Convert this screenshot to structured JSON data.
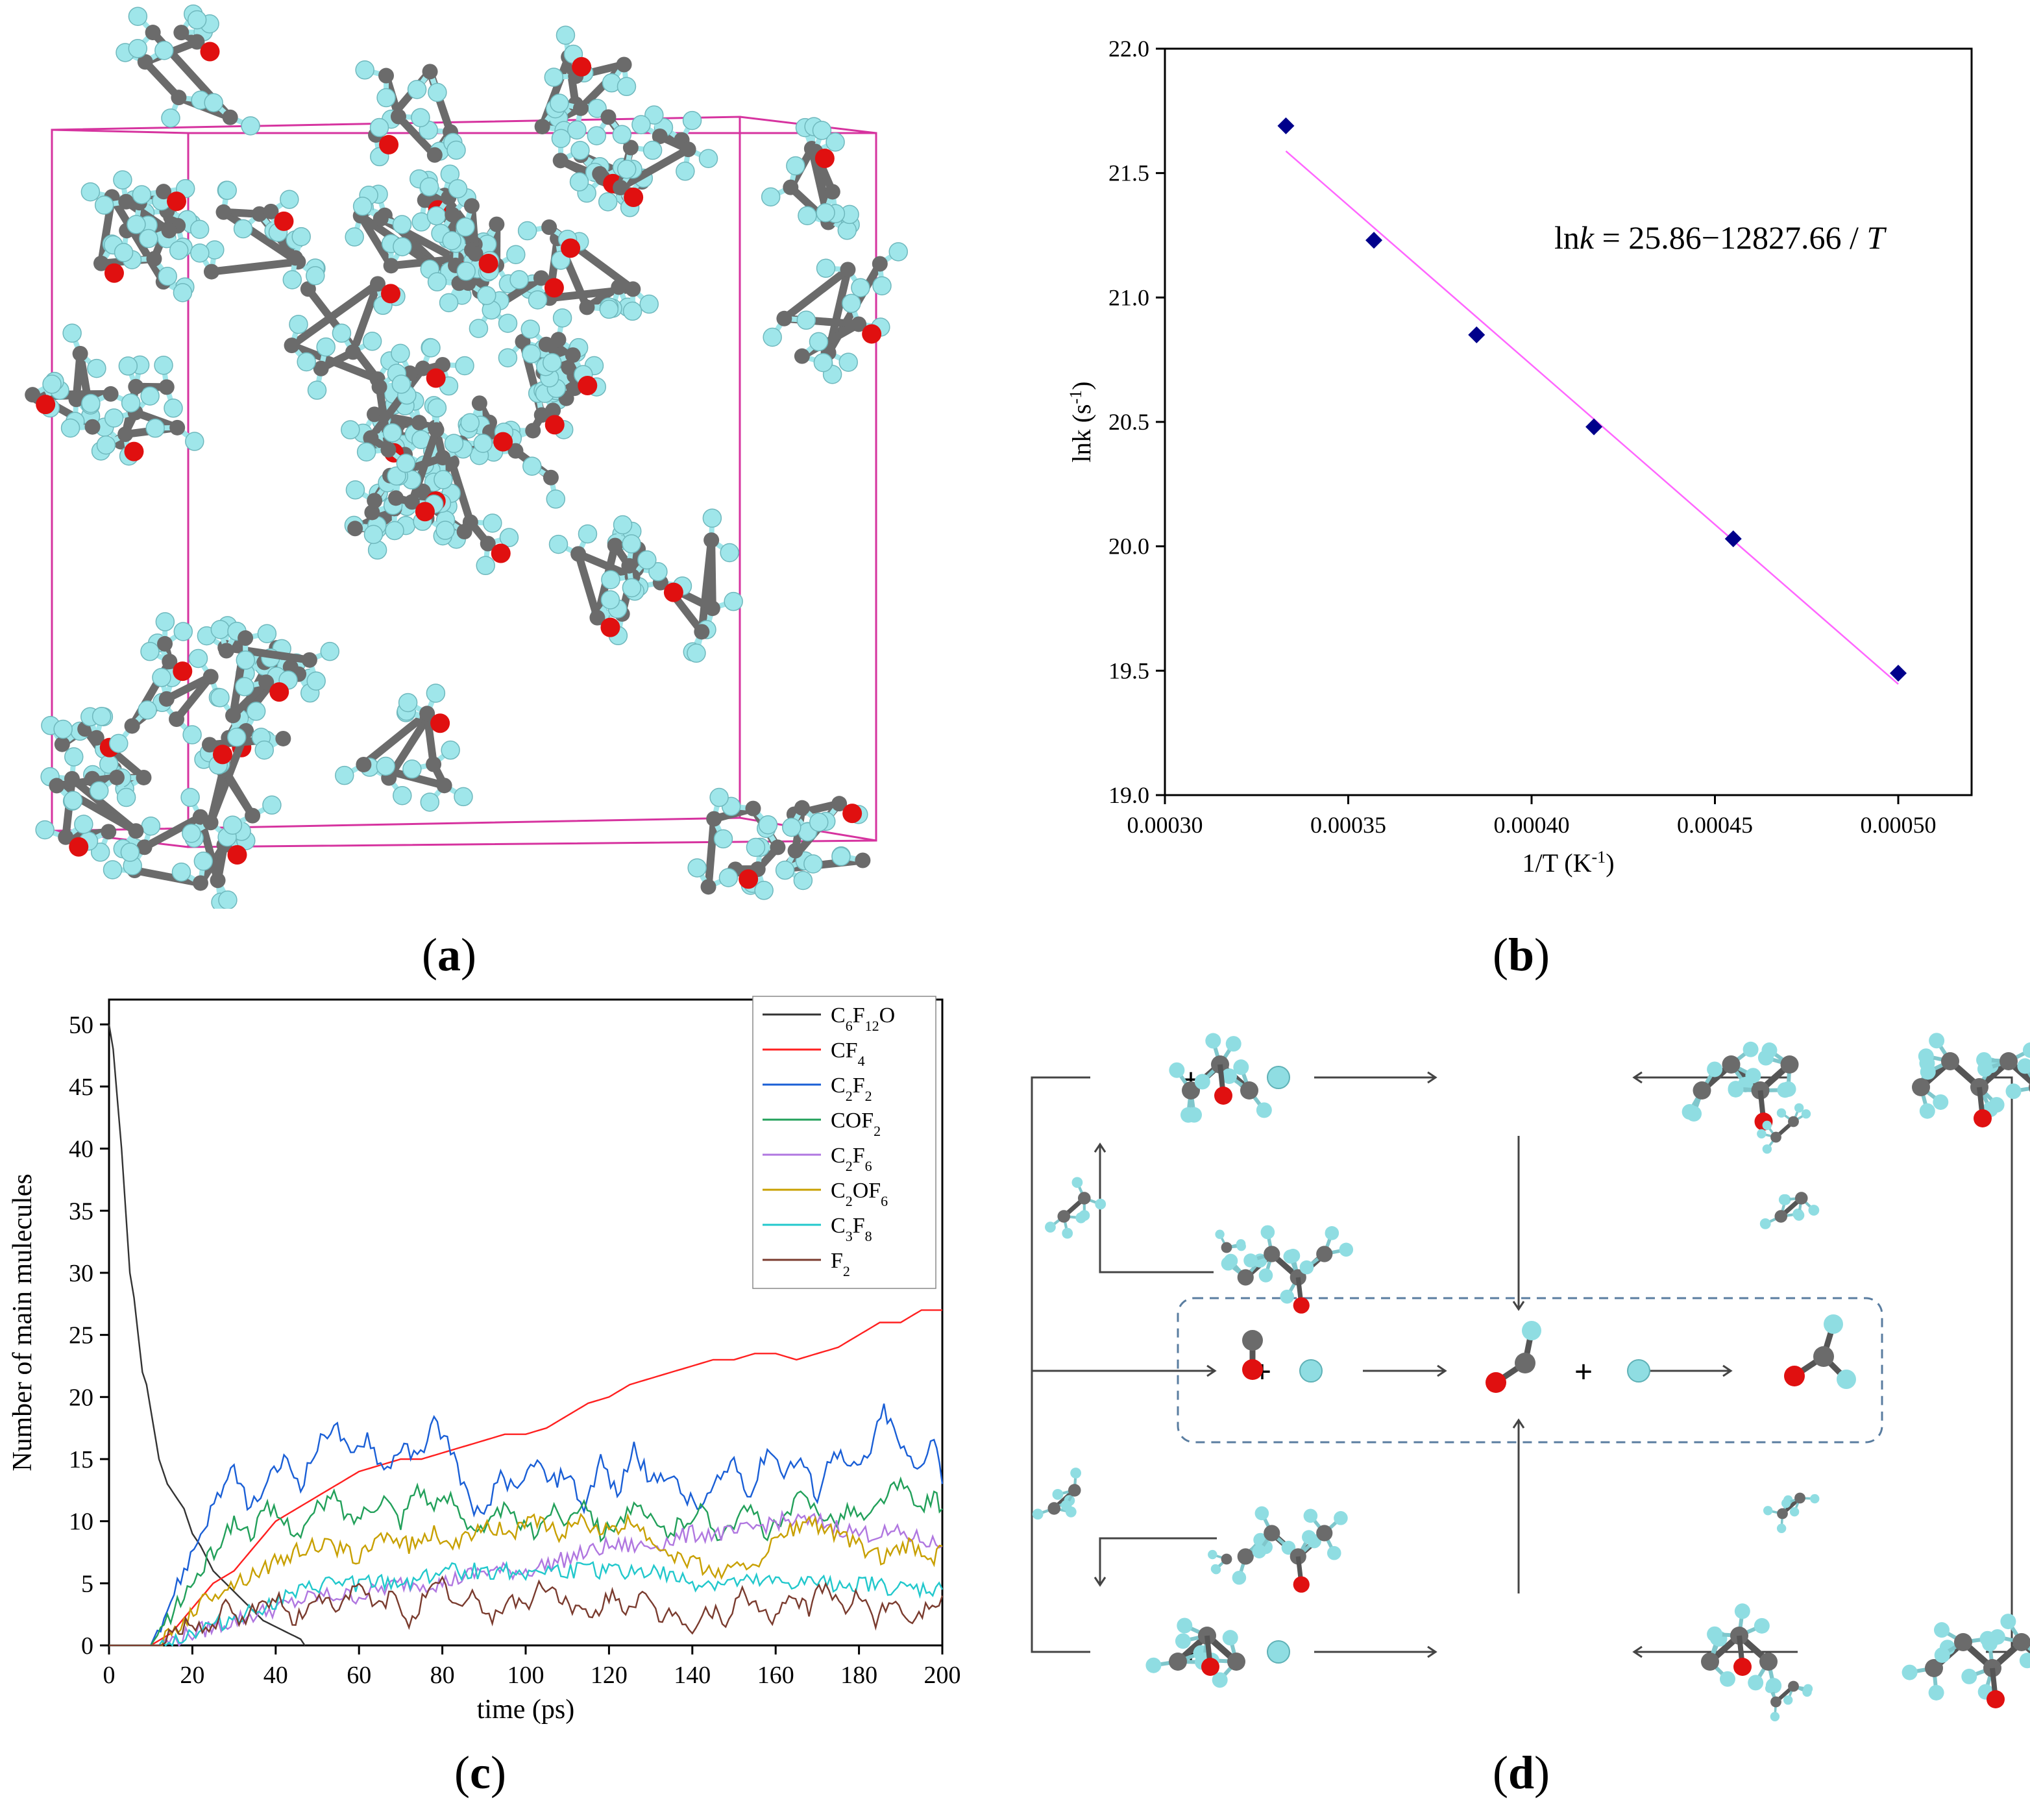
{
  "panel_labels": {
    "a": "a",
    "b": "b",
    "c": "c",
    "d": "d"
  },
  "colors": {
    "box": "#d6339f",
    "carbon": "#6b6b6b",
    "oxygen": "#e01010",
    "fluorine": "#9fe6ea",
    "marker": "#00008b",
    "fit": "#ff66ff",
    "dash": "#5a7da0",
    "series": [
      "#333333",
      "#ff2020",
      "#1a5fd6",
      "#22a05a",
      "#b077e0",
      "#c8a000",
      "#22c8cc",
      "#7a3b2e"
    ]
  },
  "chart_data": [
    {
      "type": "scatter",
      "id": "b",
      "xlabel": "1/T (K",
      "xlabel_sup": "-1",
      "xlabel_end": ")",
      "ylabel": "lnk (s",
      "ylabel_sup": "-1",
      "ylabel_end": ")",
      "xlim": [
        0.0003,
        0.00052
      ],
      "ylim": [
        19.0,
        22.0
      ],
      "xticks": [
        "0.00030",
        "0.00035",
        "0.00040",
        "0.00045",
        "0.00050"
      ],
      "xtick_values": [
        0.0003,
        0.00035,
        0.0004,
        0.00045,
        0.0005
      ],
      "yticks": [
        "19.0",
        "19.5",
        "20.0",
        "20.5",
        "21.0",
        "21.5",
        "22.0"
      ],
      "ytick_values": [
        19.0,
        19.5,
        20.0,
        20.5,
        21.0,
        21.5,
        22.0
      ],
      "points": [
        {
          "x": 0.000333,
          "y": 21.69
        },
        {
          "x": 0.000357,
          "y": 21.23
        },
        {
          "x": 0.000385,
          "y": 20.85
        },
        {
          "x": 0.000417,
          "y": 20.48
        },
        {
          "x": 0.000455,
          "y": 20.03
        },
        {
          "x": 0.0005,
          "y": 19.49
        }
      ],
      "fit": {
        "intercept": 25.86,
        "slope": -12827.66,
        "x_range": [
          0.000333,
          0.0005
        ]
      },
      "equation": {
        "lhs": "ln",
        "k": "k",
        "rhs": " = 25.86−12827.66 / ",
        "T": "T"
      }
    },
    {
      "type": "line",
      "id": "c",
      "xlabel": "time (ps)",
      "ylabel": "Number of main mulecules",
      "xlim": [
        0,
        200
      ],
      "ylim": [
        0,
        52
      ],
      "xticks": [
        "0",
        "20",
        "40",
        "60",
        "80",
        "100",
        "120",
        "140",
        "160",
        "180",
        "200"
      ],
      "xtick_values": [
        0,
        20,
        40,
        60,
        80,
        100,
        120,
        140,
        160,
        180,
        200
      ],
      "yticks": [
        "0",
        "5",
        "10",
        "15",
        "20",
        "25",
        "30",
        "35",
        "40",
        "45",
        "50"
      ],
      "ytick_values": [
        0,
        5,
        10,
        15,
        20,
        25,
        30,
        35,
        40,
        45,
        50
      ],
      "series": [
        {
          "name": "C6F12O",
          "label": [
            [
              "C",
              ""
            ],
            [
              "6",
              "sub"
            ],
            [
              "F",
              ""
            ],
            [
              "12",
              "sub"
            ],
            [
              "O",
              ""
            ]
          ],
          "t": [
            0,
            1,
            2,
            3,
            4,
            5,
            6,
            7,
            8,
            9,
            10,
            12,
            14,
            16,
            18,
            20,
            22,
            25,
            28,
            31,
            34,
            37,
            40,
            43,
            46,
            47
          ],
          "v": [
            50,
            48,
            44,
            40,
            35,
            30,
            28,
            25,
            22,
            21,
            19,
            15,
            13,
            12,
            11,
            9,
            8,
            6,
            5,
            4,
            3,
            2,
            1.5,
            1,
            0.5,
            0
          ]
        },
        {
          "name": "CF4",
          "label": [
            [
              "CF",
              ""
            ],
            [
              "4",
              "sub"
            ]
          ],
          "t": [
            0,
            10,
            15,
            20,
            25,
            30,
            35,
            40,
            45,
            50,
            55,
            60,
            65,
            70,
            75,
            80,
            85,
            90,
            95,
            100,
            105,
            110,
            115,
            120,
            125,
            130,
            135,
            140,
            145,
            150,
            155,
            160,
            165,
            170,
            175,
            180,
            185,
            190,
            195,
            200
          ],
          "v": [
            0,
            0,
            1,
            3,
            5,
            6,
            8,
            10,
            11,
            12,
            13,
            14,
            14.5,
            15,
            15,
            15.5,
            16,
            16.5,
            17,
            17,
            17.5,
            18.5,
            19.5,
            20,
            21,
            21.5,
            22,
            22.5,
            23,
            23,
            23.5,
            23.5,
            23,
            23.5,
            24,
            25,
            26,
            26,
            27,
            27
          ]
        },
        {
          "name": "C2F2",
          "label": [
            [
              "C",
              ""
            ],
            [
              "2",
              "sub"
            ],
            [
              "F",
              ""
            ],
            [
              "2",
              "sub"
            ]
          ],
          "t": [
            0,
            10,
            14,
            18,
            22,
            26,
            30,
            34,
            38,
            42,
            46,
            50,
            54,
            58,
            62,
            66,
            70,
            74,
            78,
            82,
            86,
            90,
            94,
            98,
            102,
            106,
            110,
            114,
            118,
            122,
            126,
            130,
            134,
            138,
            142,
            146,
            150,
            154,
            158,
            162,
            166,
            170,
            174,
            178,
            182,
            186,
            190,
            194,
            198,
            200
          ],
          "v": [
            0,
            0,
            3,
            6,
            9,
            12,
            14,
            11,
            13,
            15,
            13,
            16,
            18,
            15,
            17,
            14,
            16,
            15,
            18,
            16,
            12,
            10,
            14,
            12,
            15,
            13,
            14,
            11,
            15,
            12,
            16,
            13,
            14,
            12,
            11,
            13,
            15,
            12,
            16,
            14,
            15,
            12,
            16,
            14,
            15,
            19,
            16,
            14,
            17,
            13
          ]
        },
        {
          "name": "COF2",
          "label": [
            [
              "COF",
              ""
            ],
            [
              "2",
              "sub"
            ]
          ],
          "t": [
            0,
            10,
            14,
            18,
            22,
            26,
            30,
            34,
            38,
            42,
            46,
            50,
            54,
            58,
            62,
            66,
            70,
            74,
            78,
            82,
            86,
            90,
            94,
            98,
            102,
            106,
            110,
            114,
            118,
            122,
            126,
            130,
            134,
            138,
            142,
            146,
            150,
            154,
            158,
            162,
            166,
            170,
            174,
            178,
            182,
            186,
            190,
            194,
            198,
            200
          ],
          "v": [
            0,
            0,
            2,
            4,
            6,
            8,
            10,
            9,
            11,
            10,
            9,
            11,
            12,
            10,
            11,
            12,
            10,
            13,
            11,
            12,
            10,
            9,
            11,
            10,
            9,
            11,
            10,
            12,
            9,
            10,
            11,
            10,
            9,
            10,
            11,
            9,
            10,
            11,
            9,
            10,
            12,
            11,
            10,
            11,
            10,
            12,
            13,
            11,
            12,
            11
          ]
        },
        {
          "name": "C2F6",
          "label": [
            [
              "C",
              ""
            ],
            [
              "2",
              "sub"
            ],
            [
              "F",
              ""
            ],
            [
              "6",
              "sub"
            ]
          ],
          "t": [
            0,
            12,
            20,
            30,
            40,
            50,
            60,
            70,
            80,
            90,
            100,
            110,
            120,
            130,
            140,
            150,
            160,
            170,
            180,
            190,
            200
          ],
          "v": [
            0,
            0,
            1,
            2,
            3,
            4,
            4,
            5,
            5,
            6,
            6,
            7,
            8,
            8,
            9,
            9,
            10,
            10,
            9,
            9,
            8
          ]
        },
        {
          "name": "C2OF6",
          "label": [
            [
              "C",
              ""
            ],
            [
              "2",
              "sub"
            ],
            [
              "OF",
              ""
            ],
            [
              "6",
              "sub"
            ]
          ],
          "t": [
            0,
            12,
            18,
            24,
            30,
            36,
            42,
            48,
            54,
            60,
            66,
            72,
            78,
            84,
            90,
            96,
            102,
            108,
            114,
            120,
            126,
            132,
            138,
            144,
            150,
            156,
            162,
            168,
            174,
            180,
            186,
            192,
            198,
            200
          ],
          "v": [
            0,
            0,
            2,
            4,
            5,
            6,
            7,
            8,
            8,
            7,
            9,
            8,
            9,
            8,
            10,
            9,
            10,
            9,
            10,
            9,
            10,
            8,
            7,
            6,
            6,
            7,
            9,
            10,
            9,
            8,
            7,
            8,
            7,
            8
          ]
        },
        {
          "name": "C3F8",
          "label": [
            [
              "C",
              ""
            ],
            [
              "3",
              "sub"
            ],
            [
              "F",
              ""
            ],
            [
              "8",
              "sub"
            ]
          ],
          "t": [
            0,
            12,
            20,
            28,
            36,
            44,
            52,
            60,
            70,
            80,
            90,
            100,
            110,
            120,
            130,
            140,
            150,
            160,
            170,
            180,
            190,
            200
          ],
          "v": [
            0,
            0,
            1,
            2,
            3,
            4,
            5,
            5,
            5,
            6,
            6,
            6,
            6,
            6,
            6,
            5,
            5,
            5,
            5,
            5,
            4.5,
            4.5
          ]
        },
        {
          "name": "F2",
          "label": [
            [
              "F",
              ""
            ],
            [
              "2",
              "sub"
            ]
          ],
          "t": [
            0,
            12,
            16,
            20,
            24,
            28,
            32,
            36,
            40,
            44,
            48,
            52,
            56,
            60,
            64,
            68,
            72,
            76,
            80,
            84,
            88,
            92,
            96,
            100,
            104,
            108,
            112,
            116,
            120,
            124,
            128,
            132,
            136,
            140,
            144,
            148,
            152,
            156,
            160,
            164,
            168,
            172,
            176,
            180,
            184,
            188,
            192,
            196,
            200
          ],
          "v": [
            0,
            0,
            1,
            2,
            1,
            3,
            2,
            3,
            4,
            2,
            3,
            4,
            3,
            5,
            3,
            4,
            2,
            4,
            5,
            3,
            4,
            2,
            4,
            3,
            5,
            4,
            3,
            2,
            4,
            3,
            4,
            2,
            3,
            1,
            3,
            2,
            4,
            3,
            2,
            4,
            3,
            5,
            3,
            4,
            2,
            4,
            2,
            3,
            4
          ]
        }
      ]
    }
  ]
}
